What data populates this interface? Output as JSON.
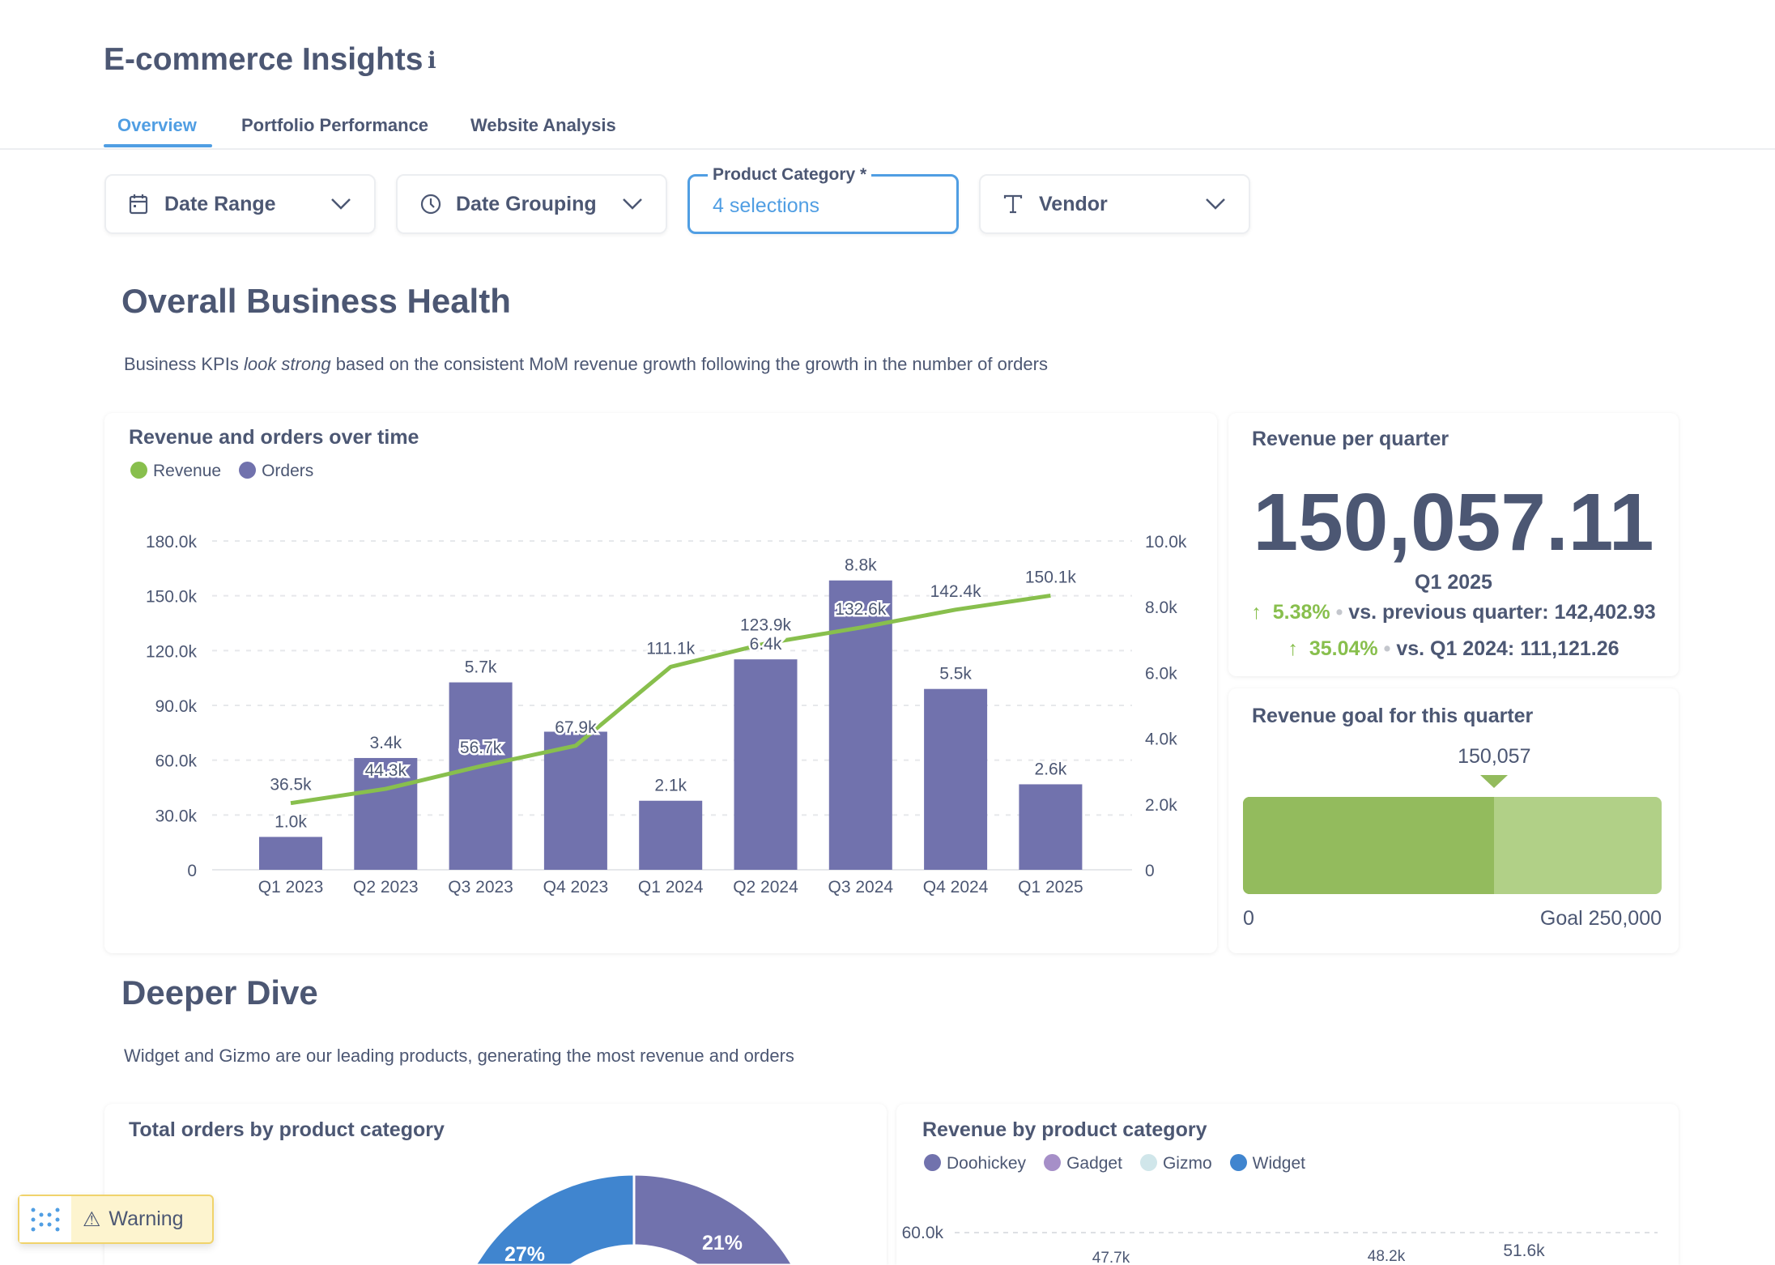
{
  "header": {
    "title": "E-commerce Insights",
    "info_icon": "info-icon"
  },
  "tabs": [
    {
      "label": "Overview",
      "active": true
    },
    {
      "label": "Portfolio Performance"
    },
    {
      "label": "Website Analysis"
    }
  ],
  "filters": {
    "date_range": "Date Range",
    "date_grouping": "Date Grouping",
    "product_category_label": "Product Category *",
    "product_category_value": "4 selections",
    "vendor": "Vendor"
  },
  "section1": {
    "title": "Overall Business Health",
    "desc_pre": "Business KPIs ",
    "desc_em": "look strong",
    "desc_post": " based on the consistent MoM revenue growth following the growth in the number of orders"
  },
  "colors": {
    "text": "#4c5773",
    "accent": "#509ee3",
    "revenue": "#88bf4d",
    "orders": "#7172ad",
    "goal_fill": "#93bb5d",
    "goal_rest": "#b1d087",
    "widget": "#4085cf",
    "gadget": "#a68fc8",
    "gizmo": "#d0e6ea"
  },
  "chart_data": [
    {
      "type": "bar+line",
      "title": "Revenue and orders over time",
      "categories": [
        "Q1 2023",
        "Q2 2023",
        "Q3 2023",
        "Q4 2023",
        "Q1 2024",
        "Q2 2024",
        "Q3 2024",
        "Q4 2024",
        "Q1 2025"
      ],
      "series": [
        {
          "name": "Revenue",
          "type": "line",
          "axis": "left",
          "values": [
            36.5,
            44.3,
            56.7,
            67.9,
            111.1,
            123.9,
            132.6,
            142.4,
            150.1
          ],
          "labels": [
            "36.5k",
            "44.3k",
            "56.7k",
            "67.9k",
            "111.1k",
            "123.9k",
            "132.6k",
            "142.4k",
            "150.1k"
          ]
        },
        {
          "name": "Orders",
          "type": "bar",
          "axis": "right",
          "values": [
            1.0,
            3.4,
            5.7,
            4.2,
            2.1,
            6.4,
            8.8,
            5.5,
            2.6
          ],
          "labels": [
            "1.0k",
            "3.4k",
            "5.7k",
            "",
            "2.1k",
            "6.4k",
            "8.8k",
            "5.5k",
            "2.6k"
          ]
        }
      ],
      "left_axis": {
        "ylim": [
          0,
          180
        ],
        "ticks": [
          "0",
          "30.0k",
          "60.0k",
          "90.0k",
          "120.0k",
          "150.0k",
          "180.0k"
        ]
      },
      "right_axis": {
        "ylim": [
          0,
          10
        ],
        "ticks": [
          "0",
          "2.0k",
          "4.0k",
          "6.0k",
          "8.0k",
          "10.0k"
        ]
      },
      "grid": true,
      "legend": "top-left"
    },
    {
      "type": "pie",
      "title": "Total orders by product category",
      "slices": [
        {
          "name": "Doohickey",
          "label": "21%",
          "value": 21
        },
        {
          "name": "Widget",
          "label": "27%",
          "value": 27
        }
      ]
    },
    {
      "type": "bar",
      "title": "Revenue by product category",
      "legend_entries": [
        "Doohickey",
        "Gadget",
        "Gizmo",
        "Widget"
      ],
      "ticks": [
        "60.0k"
      ],
      "labels": [
        "47.7k",
        "48.2k",
        "51.6k"
      ]
    }
  ],
  "kpi": {
    "title": "Revenue per quarter",
    "value": "150,057.11",
    "period": "Q1 2025",
    "cmp1_pct": "5.38%",
    "cmp1_text": "vs. previous quarter: 142,402.93",
    "cmp2_pct": "35.04%",
    "cmp2_text": "vs. Q1 2024: 111,121.26"
  },
  "goal": {
    "title": "Revenue goal for this quarter",
    "value_label": "150,057",
    "value": 150057,
    "goal": 250000,
    "min_label": "0",
    "goal_label": "Goal 250,000"
  },
  "section2": {
    "title": "Deeper Dive",
    "desc": "Widget and Gizmo are our leading products, generating the most revenue and orders"
  },
  "warning": {
    "label": "Warning"
  }
}
